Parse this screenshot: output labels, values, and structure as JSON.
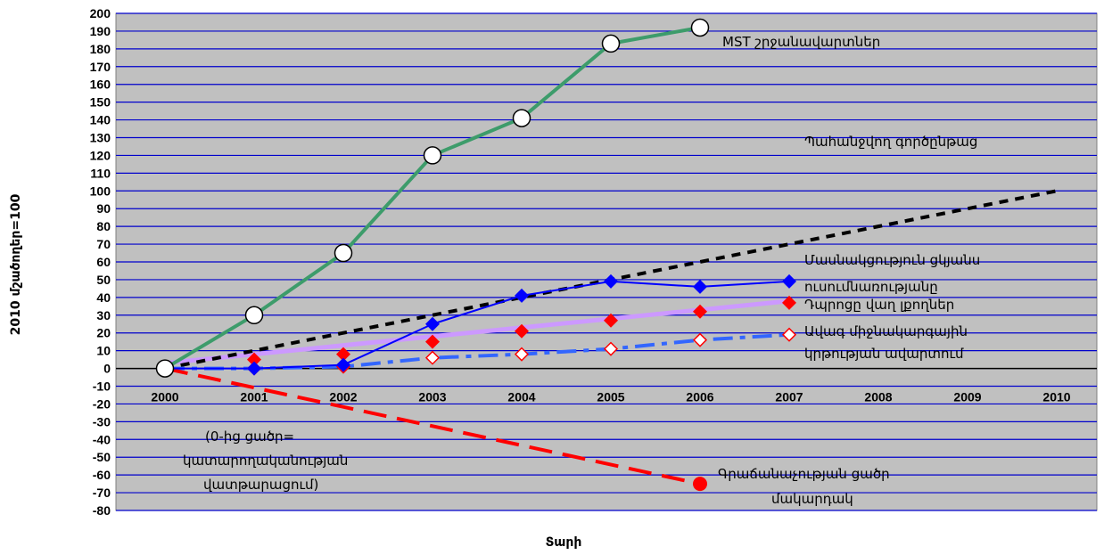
{
  "chart_data": {
    "type": "line",
    "xlabel": "Տարի",
    "ylabel": "2010 մշածողեր=100",
    "x": [
      2000,
      2001,
      2002,
      2003,
      2004,
      2005,
      2006,
      2007,
      2008,
      2009,
      2010
    ],
    "ylim": [
      -80,
      200
    ],
    "ytick_step": 10,
    "grid": true,
    "colors": {
      "plot_background": "#c0c0c0",
      "gridline": "#0000cc",
      "mst": "#3d9c6b",
      "target": "#000000",
      "internet": "#0000ff",
      "school": "#ff0000",
      "literacy": "#3366ff",
      "poverty": "#ff0000",
      "target_purple": "#cc99ff"
    },
    "series": [
      {
        "key": "mst",
        "name": "MST շրջանավարտներ",
        "x": [
          2000,
          2001,
          2002,
          2003,
          2004,
          2005,
          2006
        ],
        "values": [
          0,
          30,
          65,
          120,
          141,
          183,
          192
        ]
      },
      {
        "key": "target",
        "name": "Պահանջվող գործընթաց",
        "x": [
          2000,
          2001,
          2002,
          2003,
          2004,
          2005,
          2006,
          2007,
          2008,
          2009,
          2010
        ],
        "values": [
          0,
          10,
          20,
          30,
          40,
          50,
          60,
          70,
          80,
          90,
          100
        ]
      },
      {
        "key": "internet",
        "name": "Մասնակցություն ցկյանս ուսումնառությանը",
        "x": [
          2000,
          2001,
          2002,
          2003,
          2004,
          2005,
          2006,
          2007
        ],
        "values": [
          0,
          0,
          2,
          25,
          41,
          49,
          46,
          49
        ]
      },
      {
        "key": "target_purple",
        "name": "",
        "x": [
          2000,
          2007
        ],
        "values": [
          3,
          38
        ]
      },
      {
        "key": "school",
        "name": "Դպրոցը վաղ լքողներ",
        "x": [
          2001,
          2002,
          2003,
          2004,
          2005,
          2006,
          2007
        ],
        "values": [
          5,
          8,
          15,
          21,
          27,
          32,
          37
        ]
      },
      {
        "key": "literacy",
        "name": "Ավագ միջնակարգային կրթության ավարտում",
        "x": [
          2000,
          2001,
          2002,
          2003,
          2004,
          2005,
          2006,
          2007
        ],
        "values": [
          0,
          0,
          1,
          6,
          8,
          11,
          16,
          19
        ]
      },
      {
        "key": "poverty",
        "name": "Գրաճանաչության ցածր մակարդակ",
        "x": [
          2000,
          2006
        ],
        "values": [
          0,
          -65
        ]
      }
    ],
    "annotations": [
      {
        "key": "mst_label",
        "text": "MST շրջանավարտներ"
      },
      {
        "key": "target_label",
        "text": "Պահանջվող գործընթաց"
      },
      {
        "key": "internet_label1",
        "text": "Մասնակցություն ցկյանս"
      },
      {
        "key": "internet_label2",
        "text": "ուսումնառությանը"
      },
      {
        "key": "school_label",
        "text": "Դպրոցը վաղ լքողներ"
      },
      {
        "key": "literacy_label1",
        "text": "Ավագ միջնակարգային"
      },
      {
        "key": "literacy_label2",
        "text": "կրթության ավարտում"
      },
      {
        "key": "poverty_label1",
        "text": "Գրաճանաչության ցածր"
      },
      {
        "key": "poverty_label2",
        "text": "մակարդակ"
      },
      {
        "key": "note1",
        "text": "(0-ից ցածր="
      },
      {
        "key": "note2",
        "text": "կատարողականության"
      },
      {
        "key": "note3",
        "text": "վատթարացում)"
      }
    ]
  }
}
